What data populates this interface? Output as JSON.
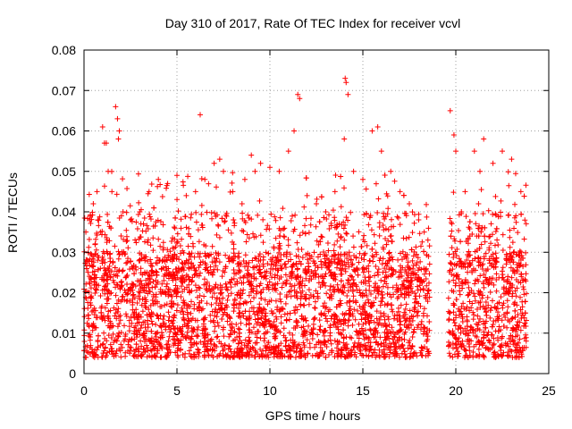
{
  "chart_data": {
    "type": "scatter",
    "title": "Day 310 of 2017, Rate Of TEC Index for receiver vcvl",
    "xlabel": "GPS time / hours",
    "ylabel": "ROTI / TECUs",
    "xlim": [
      0,
      25
    ],
    "ylim": [
      0,
      0.08
    ],
    "x_ticks": [
      0,
      5,
      10,
      15,
      20,
      25
    ],
    "y_ticks": [
      0,
      0.01,
      0.02,
      0.03,
      0.04,
      0.05,
      0.06,
      0.07,
      0.08
    ],
    "y_tick_labels": [
      "0",
      "0.01",
      "0.02",
      "0.03",
      "0.04",
      "0.05",
      "0.06",
      "0.07",
      "0.08"
    ],
    "grid": true,
    "marker": "+",
    "marker_color": "#ff0000",
    "data_gap_hours": [
      18.6,
      19.6
    ],
    "series": [
      {
        "name": "ROTI",
        "x": [
          0.1,
          0.3,
          0.5,
          0.7,
          1.0,
          1.1,
          1.2,
          1.3,
          1.5,
          1.7,
          1.8,
          1.85,
          1.9,
          2.1,
          2.5,
          3.0,
          3.5,
          4.0,
          4.5,
          5.0,
          5.5,
          6.0,
          6.25,
          6.5,
          7.0,
          7.3,
          7.5,
          8.0,
          8.5,
          9.0,
          9.2,
          9.5,
          10.0,
          10.5,
          11.0,
          11.3,
          11.5,
          11.6,
          12.0,
          12.5,
          13.0,
          13.5,
          14.0,
          14.05,
          14.1,
          14.2,
          14.5,
          15.0,
          15.5,
          15.8,
          16.0,
          16.5,
          17.0,
          17.5,
          18.0,
          18.3,
          18.5,
          19.7,
          19.9,
          20.0,
          20.3,
          20.5,
          21.0,
          21.3,
          21.5,
          22.0,
          22.5,
          23.0,
          23.5
        ],
        "y": [
          0.035,
          0.038,
          0.042,
          0.045,
          0.061,
          0.057,
          0.057,
          0.05,
          0.045,
          0.066,
          0.063,
          0.058,
          0.06,
          0.04,
          0.038,
          0.04,
          0.045,
          0.048,
          0.047,
          0.049,
          0.044,
          0.045,
          0.064,
          0.048,
          0.052,
          0.053,
          0.05,
          0.045,
          0.042,
          0.054,
          0.05,
          0.052,
          0.051,
          0.05,
          0.055,
          0.06,
          0.069,
          0.068,
          0.044,
          0.042,
          0.04,
          0.045,
          0.058,
          0.073,
          0.072,
          0.069,
          0.05,
          0.048,
          0.06,
          0.061,
          0.055,
          0.05,
          0.045,
          0.042,
          0.038,
          0.035,
          0.033,
          0.065,
          0.059,
          0.055,
          0.04,
          0.045,
          0.055,
          0.05,
          0.058,
          0.052,
          0.055,
          0.053,
          0.045
        ]
      }
    ]
  }
}
